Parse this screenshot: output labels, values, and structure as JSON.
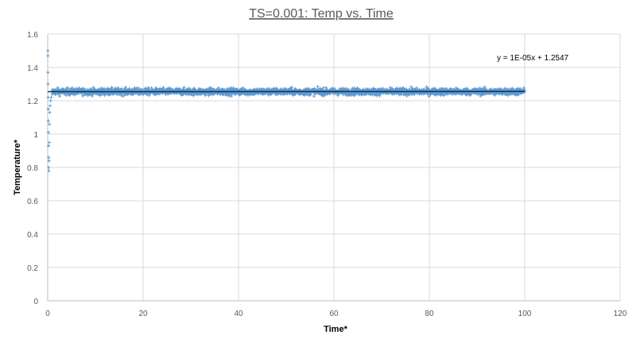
{
  "chart_data": {
    "type": "scatter",
    "title": "TS=0.001: Temp vs. Time",
    "xlabel": "Time*",
    "ylabel": "Temperature*",
    "xlim": [
      0,
      120
    ],
    "ylim": [
      0,
      1.6
    ],
    "xticks": [
      "0",
      "20",
      "40",
      "60",
      "80",
      "100",
      "120"
    ],
    "yticks": [
      "0",
      "0.2",
      "0.4",
      "0.6",
      "0.8",
      "1",
      "1.2",
      "1.4",
      "1.6"
    ],
    "grid": true,
    "marker_color": "#5B9BD5",
    "trendline_color": "#1F2A44",
    "trendline": {
      "label": "y = 1E-05x + 1.2547",
      "slope": 1e-05,
      "intercept": 1.2547
    },
    "series": [
      {
        "x_range": [
          0,
          100
        ],
        "mean": 1.2547,
        "noise_band": [
          1.19,
          1.33
        ],
        "initial_points": [
          [
            0.02,
            1.5
          ],
          [
            0.04,
            1.47
          ],
          [
            0.06,
            1.37
          ],
          [
            0.08,
            1.3
          ],
          [
            0.1,
            1.22
          ],
          [
            0.12,
            1.15
          ],
          [
            0.14,
            1.08
          ],
          [
            0.16,
            1.01
          ],
          [
            0.18,
            0.93
          ],
          [
            0.2,
            0.86
          ],
          [
            0.22,
            0.8
          ],
          [
            0.24,
            0.78
          ],
          [
            0.28,
            0.84
          ],
          [
            0.32,
            0.95
          ],
          [
            0.36,
            1.06
          ],
          [
            0.42,
            1.13
          ],
          [
            0.5,
            1.17
          ],
          [
            0.6,
            1.2
          ],
          [
            0.75,
            1.22
          ],
          [
            0.9,
            1.24
          ]
        ]
      }
    ]
  }
}
